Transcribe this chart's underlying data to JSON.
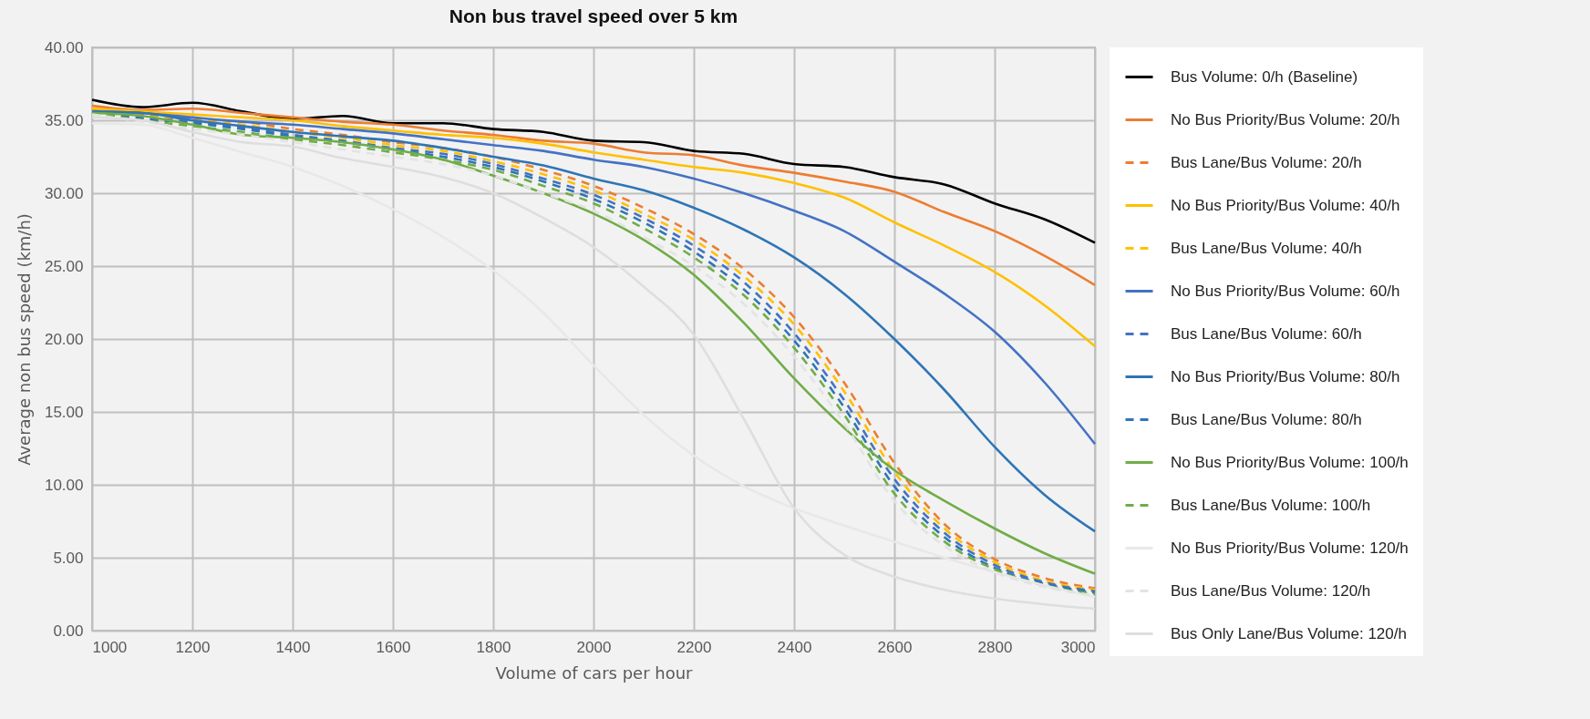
{
  "chart_data": {
    "type": "line",
    "title": "Non bus travel speed over 5 km",
    "xlabel": "Volume of cars per hour",
    "ylabel": "Average non bus speed (km/h)",
    "x": [
      1000,
      1100,
      1200,
      1300,
      1400,
      1500,
      1600,
      1700,
      1800,
      1900,
      2000,
      2100,
      2200,
      2300,
      2400,
      2500,
      2600,
      2700,
      2800,
      2900,
      3000
    ],
    "series": [
      {
        "name": "Bus Volume: 0/h (Baseline)",
        "color": "#000000",
        "line_style": "solid",
        "values": [
          36.4,
          35.9,
          36.2,
          35.6,
          35.1,
          35.3,
          34.8,
          34.8,
          34.4,
          34.2,
          33.6,
          33.5,
          32.9,
          32.7,
          32.0,
          31.8,
          31.1,
          30.6,
          29.3,
          28.2,
          26.6
        ]
      },
      {
        "name": "No Bus Priority/Bus Volume: 20/h",
        "color": "#ed7d31",
        "line_style": "solid",
        "values": [
          36.0,
          35.7,
          35.8,
          35.5,
          35.2,
          34.9,
          34.7,
          34.3,
          34.0,
          33.6,
          33.4,
          32.8,
          32.6,
          31.9,
          31.4,
          30.8,
          30.1,
          28.7,
          27.4,
          25.7,
          23.7
        ]
      },
      {
        "name": "Bus Lane/Bus Volume: 20/h",
        "color": "#ed7d31",
        "line_style": "dashed",
        "values": [
          35.7,
          35.4,
          35.1,
          34.9,
          34.4,
          34.0,
          33.5,
          33.1,
          32.5,
          31.6,
          30.5,
          29.0,
          27.2,
          24.8,
          21.5,
          17.0,
          11.5,
          7.3,
          4.9,
          3.6,
          2.9
        ]
      },
      {
        "name": "No Bus Priority/Bus Volume: 40/h",
        "color": "#ffc000",
        "line_style": "solid",
        "values": [
          35.8,
          35.6,
          35.4,
          35.2,
          35.0,
          34.6,
          34.3,
          34.0,
          33.8,
          33.4,
          32.8,
          32.3,
          31.8,
          31.4,
          30.7,
          29.7,
          28.0,
          26.4,
          24.6,
          22.3,
          19.5
        ]
      },
      {
        "name": "Bus Lane/Bus Volume: 40/h",
        "color": "#ffc000",
        "line_style": "dashed",
        "values": [
          35.6,
          35.3,
          35.0,
          34.7,
          34.2,
          33.8,
          33.3,
          32.9,
          32.2,
          31.3,
          30.2,
          28.6,
          26.8,
          24.3,
          21.0,
          16.4,
          10.9,
          7.0,
          4.7,
          3.4,
          2.8
        ]
      },
      {
        "name": "No Bus Priority/Bus Volume: 60/h",
        "color": "#4472c4",
        "line_style": "solid",
        "values": [
          35.6,
          35.5,
          35.2,
          34.9,
          34.7,
          34.4,
          34.1,
          33.7,
          33.3,
          32.9,
          32.3,
          31.8,
          31.0,
          30.0,
          28.8,
          27.4,
          25.3,
          23.1,
          20.5,
          17.0,
          12.8
        ]
      },
      {
        "name": "Bus Lane/Bus Volume: 60/h",
        "color": "#4472c4",
        "line_style": "dashed",
        "values": [
          35.6,
          35.2,
          34.9,
          34.5,
          34.0,
          33.6,
          33.1,
          32.7,
          32.0,
          31.0,
          29.9,
          28.3,
          26.4,
          23.9,
          20.4,
          15.8,
          10.4,
          6.7,
          4.5,
          3.3,
          2.7
        ]
      },
      {
        "name": "No Bus Priority/Bus Volume: 80/h",
        "color": "#2e75b6",
        "line_style": "solid",
        "values": [
          35.6,
          35.5,
          35.0,
          34.6,
          34.2,
          33.9,
          33.6,
          33.1,
          32.5,
          31.9,
          31.0,
          30.2,
          29.0,
          27.5,
          25.6,
          23.1,
          20.0,
          16.5,
          12.6,
          9.3,
          6.8
        ]
      },
      {
        "name": "Bus Lane/Bus Volume: 80/h",
        "color": "#2e75b6",
        "line_style": "dashed",
        "values": [
          35.5,
          35.1,
          34.8,
          34.4,
          33.9,
          33.5,
          33.0,
          32.5,
          31.8,
          30.8,
          29.6,
          28.0,
          26.0,
          23.4,
          19.9,
          15.3,
          9.9,
          6.4,
          4.3,
          3.2,
          2.6
        ]
      },
      {
        "name": "No Bus Priority/Bus Volume: 100/h",
        "color": "#70ad47",
        "line_style": "solid",
        "values": [
          35.5,
          35.3,
          34.7,
          34.0,
          33.8,
          33.5,
          33.0,
          32.3,
          31.2,
          30.0,
          28.6,
          26.8,
          24.4,
          21.1,
          17.3,
          13.9,
          11.0,
          8.9,
          7.0,
          5.3,
          3.9
        ]
      },
      {
        "name": "Bus Lane/Bus Volume: 100/h",
        "color": "#70ad47",
        "line_style": "dashed",
        "values": [
          35.5,
          35.0,
          34.6,
          34.2,
          33.7,
          33.3,
          32.8,
          32.3,
          31.6,
          30.5,
          29.3,
          27.6,
          25.6,
          23.0,
          19.4,
          14.8,
          9.4,
          6.1,
          4.2,
          3.1,
          2.5
        ]
      },
      {
        "name": "No Bus Priority/Bus Volume: 120/h",
        "color": "#e8e8e8",
        "line_style": "solid",
        "values": [
          34.8,
          34.7,
          33.8,
          32.8,
          31.8,
          30.5,
          28.9,
          27.0,
          24.7,
          21.8,
          18.2,
          14.8,
          12.0,
          9.9,
          8.4,
          7.2,
          6.1,
          5.0,
          4.0,
          3.1,
          2.3
        ]
      },
      {
        "name": "Bus Lane/Bus Volume: 120/h",
        "color": "#e3e3e3",
        "line_style": "dashed",
        "values": [
          35.4,
          34.9,
          34.4,
          34.0,
          33.5,
          33.0,
          32.5,
          32.0,
          31.2,
          30.0,
          28.8,
          27.0,
          25.0,
          22.4,
          18.8,
          14.2,
          8.9,
          5.8,
          4.0,
          3.0,
          2.4
        ]
      },
      {
        "name": "Bus Only Lane/Bus Volume: 120/h",
        "color": "#dedede",
        "line_style": "solid",
        "values": [
          35.2,
          35.0,
          34.2,
          33.5,
          33.2,
          32.4,
          31.8,
          31.1,
          30.0,
          28.3,
          26.3,
          23.6,
          20.3,
          14.5,
          8.4,
          5.2,
          3.7,
          2.8,
          2.2,
          1.8,
          1.5
        ]
      }
    ],
    "xlim": [
      1000,
      3000
    ],
    "xticks": [
      1000,
      1200,
      1400,
      1600,
      1800,
      2000,
      2200,
      2400,
      2600,
      2800,
      3000
    ],
    "ylim": [
      0,
      40
    ],
    "yticks": [
      {
        "value": 0,
        "label": "0.00"
      },
      {
        "value": 5,
        "label": "5.00"
      },
      {
        "value": 10,
        "label": "10.00"
      },
      {
        "value": 15,
        "label": "15.00"
      },
      {
        "value": 20,
        "label": "20.00"
      },
      {
        "value": 25,
        "label": "25.00"
      },
      {
        "value": 30,
        "label": "30.00"
      },
      {
        "value": 35,
        "label": "35.00"
      },
      {
        "value": 40,
        "label": "40.00"
      }
    ],
    "grid": true,
    "legend": "right",
    "marker": "none"
  }
}
